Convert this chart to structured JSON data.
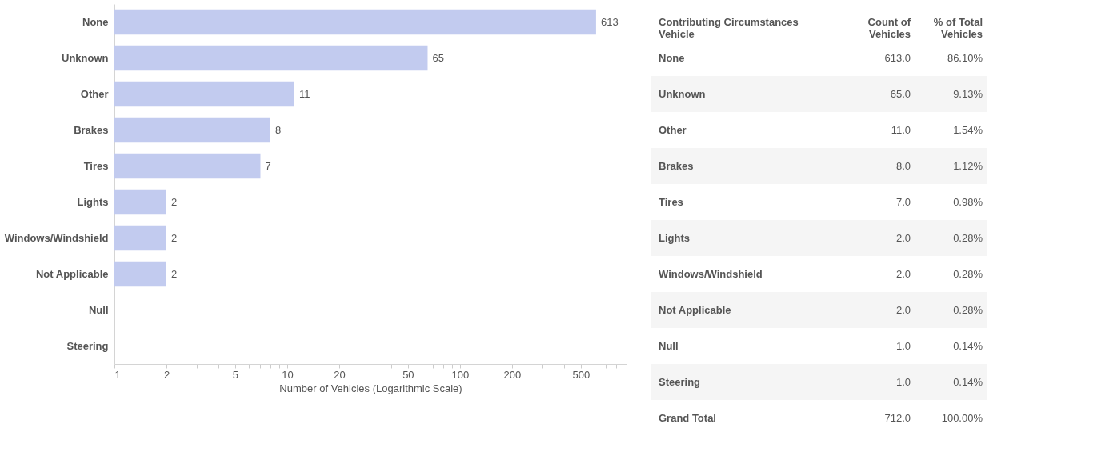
{
  "chart_data": [
    {
      "type": "bar",
      "orientation": "horizontal",
      "categories": [
        "None",
        "Unknown",
        "Other",
        "Brakes",
        "Tires",
        "Lights",
        "Windows/Windshield",
        "Not Applicable",
        "Null",
        "Steering"
      ],
      "values": [
        613,
        65,
        11,
        8,
        7,
        2,
        2,
        2,
        1,
        1
      ],
      "value_labels": [
        "613",
        "65",
        "11",
        "8",
        "7",
        "2",
        "2",
        "2",
        null,
        null
      ],
      "color": "#c2cbef",
      "log": "x",
      "xlim": [
        1,
        920
      ],
      "xticks": [
        1,
        2,
        {
          "value": 3,
          "label": null
        },
        {
          "value": 4,
          "label": null
        },
        5,
        {
          "value": 6,
          "label": null
        },
        {
          "value": 7,
          "label": null
        },
        {
          "value": 8,
          "label": null
        },
        {
          "value": 9,
          "label": null
        },
        10,
        20,
        {
          "value": 30,
          "label": null
        },
        {
          "value": 40,
          "label": null
        },
        50,
        {
          "value": 60,
          "label": null
        },
        {
          "value": 70,
          "label": null
        },
        {
          "value": 80,
          "label": null
        },
        {
          "value": 90,
          "label": null
        },
        100,
        200,
        {
          "value": 300,
          "label": null
        },
        {
          "value": 400,
          "label": null
        },
        500,
        {
          "value": 600,
          "label": null
        },
        {
          "value": 700,
          "label": null
        },
        {
          "value": 800,
          "label": null
        }
      ],
      "xlabel": "Number of Vehicles (Logarithmic Scale)",
      "grid": false
    },
    {
      "type": "other",
      "title": "Contributing Circumstances Vehicle",
      "categories": [
        "None",
        "Unknown",
        "Other",
        "Brakes",
        "Tires",
        "Lights",
        "Windows/Windshield",
        "Not Applicable",
        "Null",
        "Steering",
        "Grand Total"
      ],
      "series": [
        {
          "name": "Count of Vehicles",
          "values": [
            613,
            65,
            11,
            8,
            7,
            2,
            2,
            2,
            1,
            1,
            712
          ],
          "value_labels": [
            "613.0",
            "65.0",
            "11.0",
            "8.0",
            "7.0",
            "2.0",
            "2.0",
            "2.0",
            "1.0",
            "1.0",
            "712.0"
          ]
        },
        {
          "name": "% of Total Vehicles",
          "values": [
            86.1,
            9.13,
            1.54,
            1.12,
            0.98,
            0.28,
            0.28,
            0.28,
            0.14,
            0.14,
            100.0
          ],
          "value_labels": [
            "86.10%",
            "9.13%",
            "1.54%",
            "1.12%",
            "0.98%",
            "0.28%",
            "0.28%",
            "0.28%",
            "0.14%",
            "0.14%",
            "100.00%"
          ]
        }
      ]
    }
  ]
}
